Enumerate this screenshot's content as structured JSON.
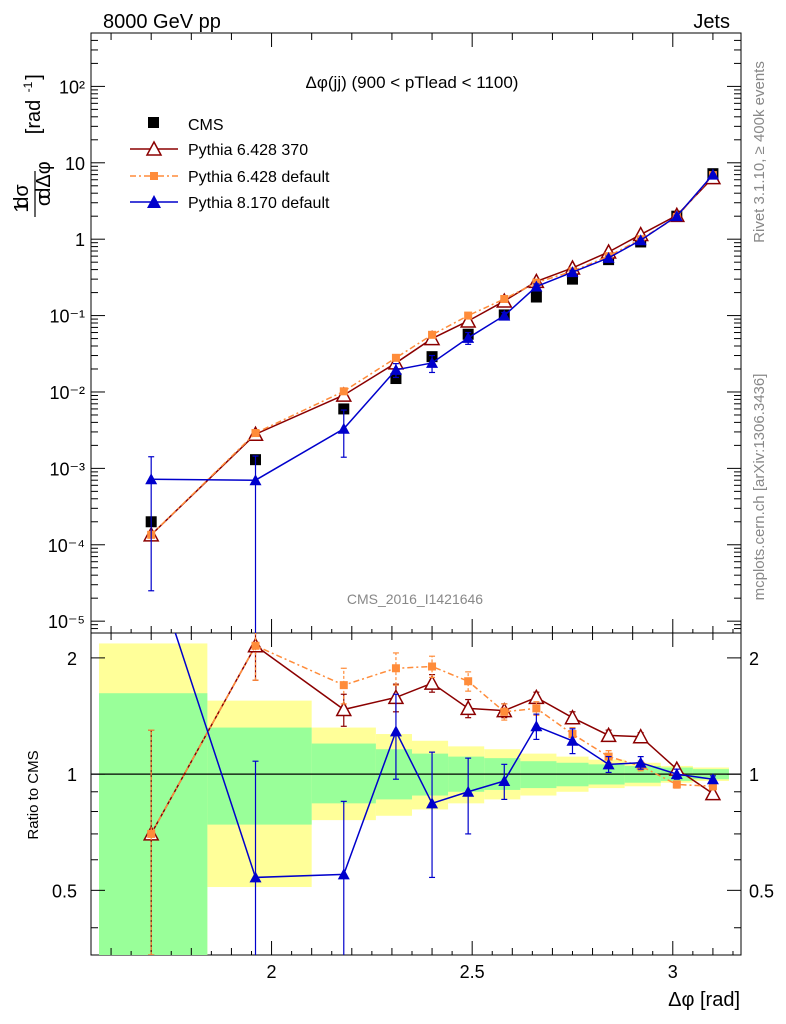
{
  "header": {
    "left": "8000 GeV pp",
    "right": "Jets"
  },
  "side_labels": {
    "rivet": "Rivet 3.1.10, ≥ 400k events",
    "mcplots": "mcplots.cern.ch [arXiv:1306.3436]"
  },
  "analysis_id": "CMS_2016_I1421646",
  "chart_data": [
    {
      "type": "line",
      "scale": "log",
      "title": "Δφ(jj) (900 < pTlead < 1100)",
      "ylabel": "1/σ dσ/dΔφ [rad⁻¹]",
      "xlim": [
        1.55,
        3.17
      ],
      "ylim": [
        7e-06,
        500
      ],
      "y_ticks": [
        "10⁻⁵",
        "10⁻⁴",
        "10⁻³",
        "10⁻²",
        "10⁻¹",
        "1",
        "10",
        "10²"
      ],
      "x": [
        1.7,
        1.96,
        2.18,
        2.31,
        2.4,
        2.49,
        2.58,
        2.66,
        2.75,
        2.84,
        2.92,
        3.01,
        3.1
      ],
      "legend": [
        "CMS",
        "Pythia 6.428 370",
        "Pythia 6.428 default",
        "Pythia 8.170 default"
      ],
      "series": [
        {
          "name": "CMS",
          "color": "#000000",
          "marker": "square",
          "values": [
            0.0002,
            0.0013,
            0.006,
            0.015,
            0.029,
            0.057,
            0.102,
            0.175,
            0.3,
            0.54,
            0.92,
            2.0,
            7.2
          ]
        },
        {
          "name": "Pythia 6.428 370",
          "color": "#8b0000",
          "marker": "open-triangle",
          "values": [
            0.000135,
            0.0028,
            0.0091,
            0.024,
            0.05,
            0.085,
            0.155,
            0.28,
            0.42,
            0.68,
            1.15,
            2.05,
            6.4
          ]
        },
        {
          "name": "Pythia 6.428 default",
          "color": "#ff8c3a",
          "marker": "small-square",
          "values": [
            0.000135,
            0.0029,
            0.0102,
            0.028,
            0.056,
            0.1,
            0.165,
            0.27,
            0.38,
            0.6,
            1.0,
            1.95,
            6.9
          ]
        },
        {
          "name": "Pythia 8.170 default",
          "color": "#0000cc",
          "marker": "triangle",
          "values": [
            0.00072,
            0.0007,
            0.0033,
            0.0195,
            0.024,
            0.051,
            0.1,
            0.24,
            0.37,
            0.57,
            0.97,
            2.0,
            7.0
          ],
          "err_lo": [
            0.000695,
            0.000695,
            0.0019,
            0.004,
            0.006,
            0.009,
            0.01,
            0.02,
            0.02,
            0.03,
            0.04,
            0.05,
            0.1
          ],
          "err_hi": [
            0.0007,
            0.00075,
            0.0025,
            0.004,
            0.006,
            0.009,
            0.01,
            0.02,
            0.02,
            0.03,
            0.04,
            0.05,
            0.1
          ]
        }
      ]
    },
    {
      "type": "line",
      "ylabel": "Ratio to CMS",
      "xlabel": "Δφ [rad]",
      "xlim": [
        1.55,
        3.17
      ],
      "ylim": [
        0.34,
        2.32
      ],
      "x_ticks": [
        2,
        2.5,
        3
      ],
      "y_ticks": [
        0.5,
        1,
        2
      ],
      "x": [
        1.7,
        1.96,
        2.18,
        2.31,
        2.4,
        2.49,
        2.58,
        2.66,
        2.75,
        2.84,
        2.92,
        3.01,
        3.1
      ],
      "bands": {
        "edges": [
          1.57,
          1.84,
          2.1,
          2.26,
          2.35,
          2.44,
          2.53,
          2.62,
          2.71,
          2.79,
          2.88,
          2.97,
          3.05,
          3.14
        ],
        "yellow_hi": [
          2.18,
          1.55,
          1.32,
          1.27,
          1.22,
          1.18,
          1.16,
          1.13,
          1.11,
          1.09,
          1.07,
          1.05,
          1.04
        ],
        "yellow_lo": [
          0.34,
          0.51,
          0.76,
          0.78,
          0.81,
          0.84,
          0.86,
          0.88,
          0.9,
          0.92,
          0.93,
          0.95,
          0.96
        ],
        "green_hi": [
          1.62,
          1.32,
          1.2,
          1.16,
          1.13,
          1.11,
          1.1,
          1.08,
          1.07,
          1.06,
          1.05,
          1.04,
          1.03
        ],
        "green_lo": [
          0.34,
          0.74,
          0.84,
          0.86,
          0.88,
          0.9,
          0.91,
          0.92,
          0.93,
          0.94,
          0.95,
          0.96,
          0.97
        ]
      },
      "series": [
        {
          "name": "Pythia 6.428 370",
          "color": "#8b0000",
          "marker": "open-triangle",
          "values": [
            0.7,
            2.15,
            1.47,
            1.58,
            1.72,
            1.48,
            1.46,
            1.58,
            1.4,
            1.26,
            1.25,
            1.03,
            0.89
          ],
          "err_lo": [
            0.36,
            0.4,
            0.14,
            0.13,
            0.09,
            0.08,
            0.06,
            0.05,
            0.05,
            0.04,
            0.03,
            0.02,
            0.02
          ],
          "err_hi": [
            0.6,
            0.4,
            0.14,
            0.13,
            0.09,
            0.08,
            0.06,
            0.05,
            0.05,
            0.04,
            0.03,
            0.02,
            0.02
          ]
        },
        {
          "name": "Pythia 6.428 default",
          "color": "#ff8c3a",
          "marker": "small-square",
          "values": [
            0.7,
            2.15,
            1.7,
            1.88,
            1.9,
            1.74,
            1.45,
            1.48,
            1.27,
            1.11,
            1.05,
            0.94,
            0.93
          ],
          "err_lo": [
            0.36,
            0.4,
            0.18,
            0.18,
            0.12,
            0.1,
            0.07,
            0.06,
            0.05,
            0.04,
            0.03,
            0.02,
            0.02
          ],
          "err_hi": [
            0.6,
            0.4,
            0.18,
            0.18,
            0.12,
            0.1,
            0.07,
            0.06,
            0.05,
            0.04,
            0.03,
            0.02,
            0.02
          ]
        },
        {
          "name": "Pythia 8.170 default",
          "color": "#0000cc",
          "marker": "triangle",
          "values": [
            3.6,
            0.54,
            0.55,
            1.29,
            0.84,
            0.9,
            0.96,
            1.33,
            1.22,
            1.06,
            1.07,
            1.0,
            0.97
          ],
          "err_lo": [
            0,
            0.54,
            0.3,
            0.32,
            0.3,
            0.2,
            0.1,
            0.1,
            0.09,
            0.05,
            0.04,
            0.03,
            0.02
          ],
          "err_hi": [
            0,
            0.54,
            0.3,
            0.32,
            0.3,
            0.2,
            0.1,
            0.1,
            0.09,
            0.05,
            0.04,
            0.03,
            0.02
          ]
        }
      ]
    }
  ]
}
